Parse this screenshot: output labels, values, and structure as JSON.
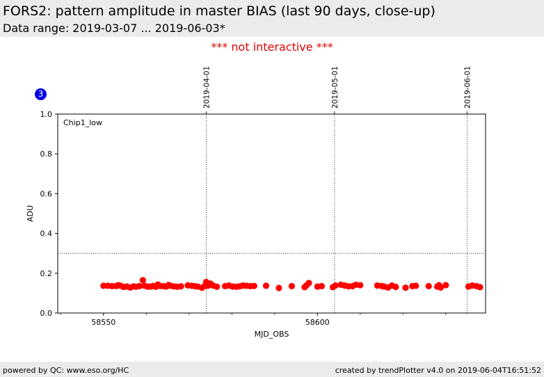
{
  "header": {
    "title": "FORS2: pattern amplitude in master BIAS (last 90 days, close-up)",
    "subtitle": "Data range: 2019-03-07 ... 2019-06-03*"
  },
  "notice": "*** not interactive ***",
  "badge": "3",
  "footer": {
    "left": "powered by QC: www.eso.org/HC",
    "right": "created by trendPlotter v4.0 on 2019-06-04T16:51:52"
  },
  "colors": {
    "points": "#ff0000",
    "badge": "#0000ee",
    "notice": "#e00000"
  },
  "chart_data": {
    "type": "scatter",
    "xlabel": "MJD_OBS",
    "ylabel": "ADU",
    "annotation": "Chip1_low",
    "xlim": [
      58539.3,
      58639.3
    ],
    "ylim": [
      0.0,
      1.0
    ],
    "xticks": [
      58550,
      58600
    ],
    "yticks": [
      0.0,
      0.2,
      0.4,
      0.6,
      0.8,
      1.0
    ],
    "threshold_line": 0.3,
    "date_markers": [
      {
        "label": "2019-04-01",
        "mjd": 58574
      },
      {
        "label": "2019-05-01",
        "mjd": 58604
      },
      {
        "label": "2019-06-01",
        "mjd": 58635
      }
    ],
    "series": [
      {
        "x": [
          58550.0,
          58551.0,
          58552.0,
          58553.0,
          58553.5,
          58554.0,
          58554.7,
          58555.5,
          58556.3,
          58557.0,
          58557.6,
          58558.4,
          58559.2,
          58559.6,
          58560.3,
          58561.0,
          58561.6,
          58562.2,
          58562.7,
          58563.2,
          58564.0,
          58564.6,
          58565.2,
          58565.6,
          58566.4,
          58567.2,
          58568.1,
          58569.7,
          58570.6,
          58571.3,
          58572.0,
          58573.0,
          58573.6,
          58574.0,
          58574.4,
          58575.0,
          58575.6,
          58576.5,
          58578.4,
          58579.3,
          58580.2,
          58581.0,
          58581.8,
          58582.6,
          58583.4,
          58584.3,
          58585.2,
          58588.0,
          58591.0,
          58594.0,
          58597.0,
          58597.4,
          58598.0,
          58600.0,
          58601.0,
          58603.6,
          58604.2,
          58605.5,
          58606.4,
          58607.3,
          58608.2,
          58609.0,
          58610.0,
          58614.0,
          58615.0,
          58615.6,
          58616.5,
          58617.4,
          58618.3,
          58620.6,
          58622.2,
          58623.0,
          58626.0,
          58628.0,
          58628.4,
          58628.8,
          58630.0,
          58635.3,
          58636.2,
          58637.2,
          58638.0
        ],
        "y": [
          0.137,
          0.137,
          0.135,
          0.136,
          0.14,
          0.137,
          0.131,
          0.133,
          0.128,
          0.134,
          0.132,
          0.135,
          0.165,
          0.137,
          0.133,
          0.133,
          0.136,
          0.132,
          0.143,
          0.136,
          0.135,
          0.133,
          0.141,
          0.137,
          0.134,
          0.132,
          0.134,
          0.139,
          0.137,
          0.135,
          0.133,
          0.127,
          0.135,
          0.156,
          0.137,
          0.148,
          0.138,
          0.132,
          0.135,
          0.138,
          0.133,
          0.132,
          0.134,
          0.138,
          0.137,
          0.135,
          0.136,
          0.137,
          0.126,
          0.135,
          0.13,
          0.138,
          0.151,
          0.133,
          0.135,
          0.13,
          0.138,
          0.142,
          0.138,
          0.134,
          0.135,
          0.142,
          0.14,
          0.138,
          0.136,
          0.133,
          0.128,
          0.138,
          0.131,
          0.127,
          0.135,
          0.137,
          0.135,
          0.133,
          0.14,
          0.128,
          0.14,
          0.133,
          0.138,
          0.135,
          0.13
        ]
      }
    ]
  }
}
